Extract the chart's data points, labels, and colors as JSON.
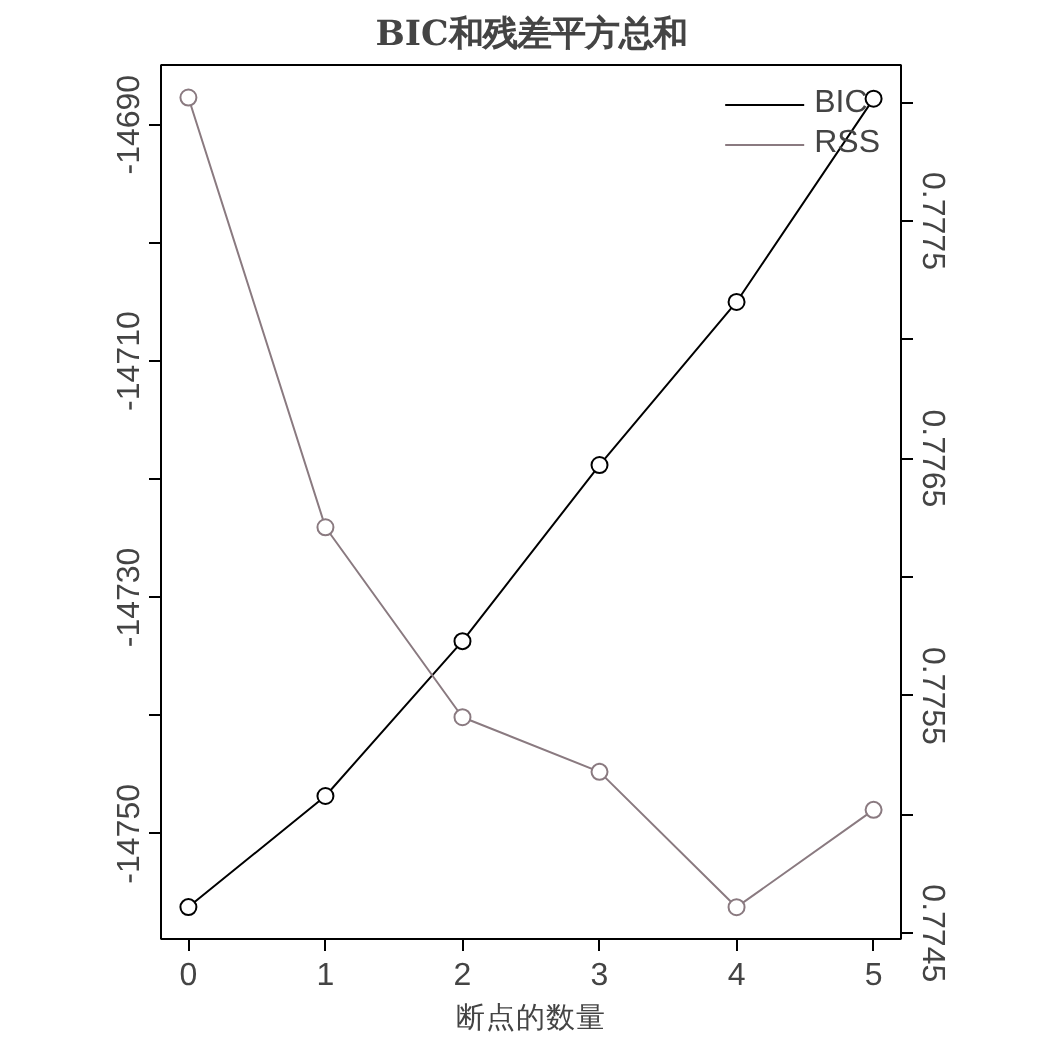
{
  "chart_data": {
    "type": "line",
    "title": "BIC和残差平方总和",
    "xlabel": "断点的数量",
    "x": [
      0,
      1,
      2,
      3,
      4,
      5
    ],
    "series": [
      {
        "name": "BIC",
        "color": "#000000",
        "values": [
          -14756.2,
          -14746.8,
          -14733.7,
          -14718.8,
          -14705.0,
          -14687.8
        ]
      },
      {
        "name": "RSS",
        "color": "#8a7a80",
        "axis": "y2",
        "values": [
          0.77802,
          0.77621,
          0.77541,
          0.77518,
          0.77461,
          0.77502
        ]
      }
    ],
    "xlim": [
      -0.2,
      5.2
    ],
    "xticks": [
      0,
      1,
      2,
      3,
      4,
      5
    ],
    "ylim": [
      -14758.9,
      -14684.95
    ],
    "yticks": [
      -14690,
      {
        "value": -14700,
        "label": null
      },
      -14710,
      {
        "value": -14720,
        "label": null
      },
      -14730,
      {
        "value": -14740,
        "label": null
      },
      -14750
    ],
    "y2lim": [
      0.774476,
      0.778157
    ],
    "y2ticks": [
      0.7745,
      {
        "value": 0.775,
        "label": null
      },
      0.7755,
      {
        "value": 0.776,
        "label": null
      },
      0.7765,
      {
        "value": 0.777,
        "label": null
      },
      0.7775,
      {
        "value": 0.778,
        "label": null
      }
    ],
    "marker": "circle",
    "line_style": "solid",
    "grid": false,
    "legend": "top right"
  }
}
